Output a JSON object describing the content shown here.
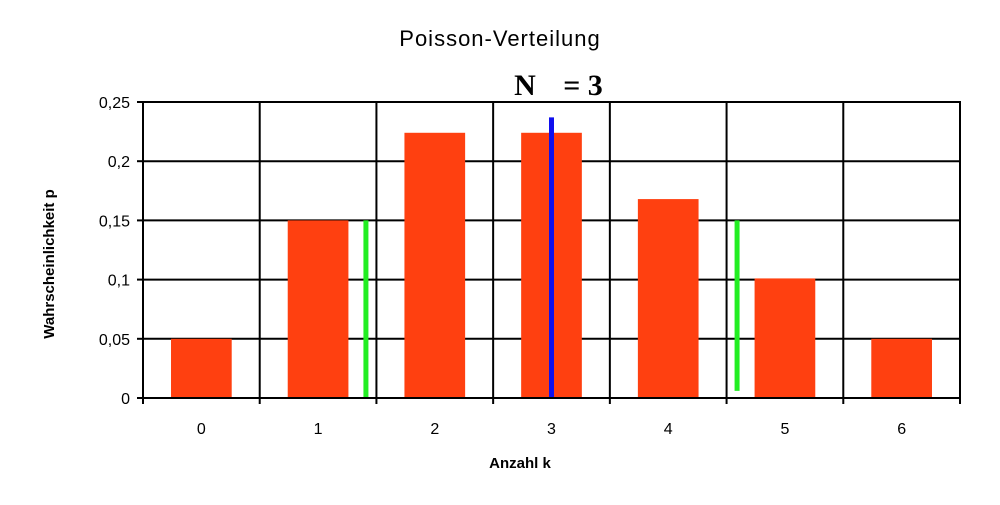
{
  "chart_data": {
    "type": "bar",
    "title": "Poisson-Verteilung",
    "subtitle": {
      "symbol": "N",
      "relation": "= 3"
    },
    "xlabel": "Anzahl k",
    "ylabel": "Wahrscheinlichkeit p",
    "categories": [
      "0",
      "1",
      "2",
      "3",
      "4",
      "5",
      "6"
    ],
    "values": [
      0.05,
      0.15,
      0.224,
      0.224,
      0.168,
      0.101,
      0.05
    ],
    "yticks": [
      0,
      0.05,
      0.1,
      0.15,
      0.2,
      0.25
    ],
    "ytick_labels": [
      "0",
      "0,05",
      "0,1",
      "0,15",
      "0,2",
      "0,25"
    ],
    "ylim": [
      0,
      0.25
    ],
    "xlim": [
      -0.5,
      6.5
    ],
    "grid": true,
    "bar_color": "#ff4010",
    "markers": [
      {
        "kind": "mean",
        "x": 3,
        "y_from": 0,
        "y_to": 0.237,
        "color": "#1010ee"
      },
      {
        "kind": "spread",
        "x": 1.41,
        "y_from": 0,
        "y_to": 0.15,
        "color": "#22ee22"
      },
      {
        "kind": "spread",
        "x": 4.59,
        "y_from": 0.006,
        "y_to": 0.15,
        "color": "#22ee22"
      }
    ]
  }
}
